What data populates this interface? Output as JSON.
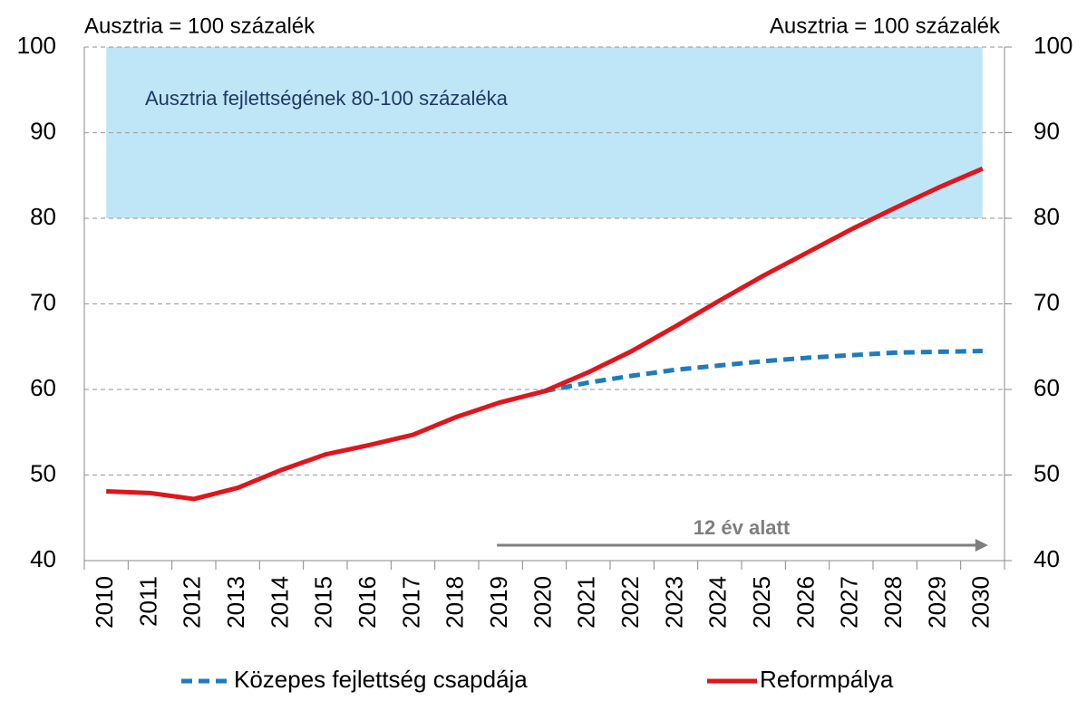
{
  "chart_data": {
    "type": "line",
    "ylabel": "Ausztria = 100 százalék",
    "y2label": "Ausztria = 100 százalék",
    "categories": [
      "2010",
      "2011",
      "2012",
      "2013",
      "2014",
      "2015",
      "2016",
      "2017",
      "2018",
      "2019",
      "2020",
      "2021",
      "2022",
      "2023",
      "2024",
      "2025",
      "2026",
      "2027",
      "2028",
      "2029",
      "2030"
    ],
    "series": [
      {
        "name": "Közepes fejlettség csapdája",
        "color": "#1f7bbd",
        "style": "dashed",
        "values": [
          null,
          null,
          null,
          null,
          null,
          null,
          null,
          null,
          null,
          null,
          59.8,
          60.8,
          61.6,
          62.3,
          62.8,
          63.3,
          63.7,
          64.0,
          64.3,
          64.4,
          64.5
        ]
      },
      {
        "name": "Reformpálya",
        "color": "#e2141c",
        "style": "solid",
        "values": [
          48.1,
          47.9,
          47.2,
          48.5,
          50.6,
          52.4,
          53.5,
          54.7,
          56.8,
          58.5,
          59.8,
          62.0,
          64.5,
          67.4,
          70.4,
          73.3,
          76.0,
          78.7,
          81.2,
          83.6,
          85.8
        ]
      }
    ],
    "band": {
      "label": "Ausztria fejlettségének 80-100 százaléka",
      "range": [
        80,
        100
      ],
      "color": "#bfe6f7"
    },
    "arrow": {
      "label": "12 év alatt",
      "from": "2019",
      "to": "2030"
    },
    "ylim": [
      40,
      100
    ],
    "yticks": [
      40,
      50,
      60,
      70,
      80,
      90,
      100
    ],
    "y2lim": [
      40,
      100
    ],
    "y2ticks": [
      40,
      50,
      60,
      70,
      80,
      90,
      100
    ],
    "grid": true
  }
}
